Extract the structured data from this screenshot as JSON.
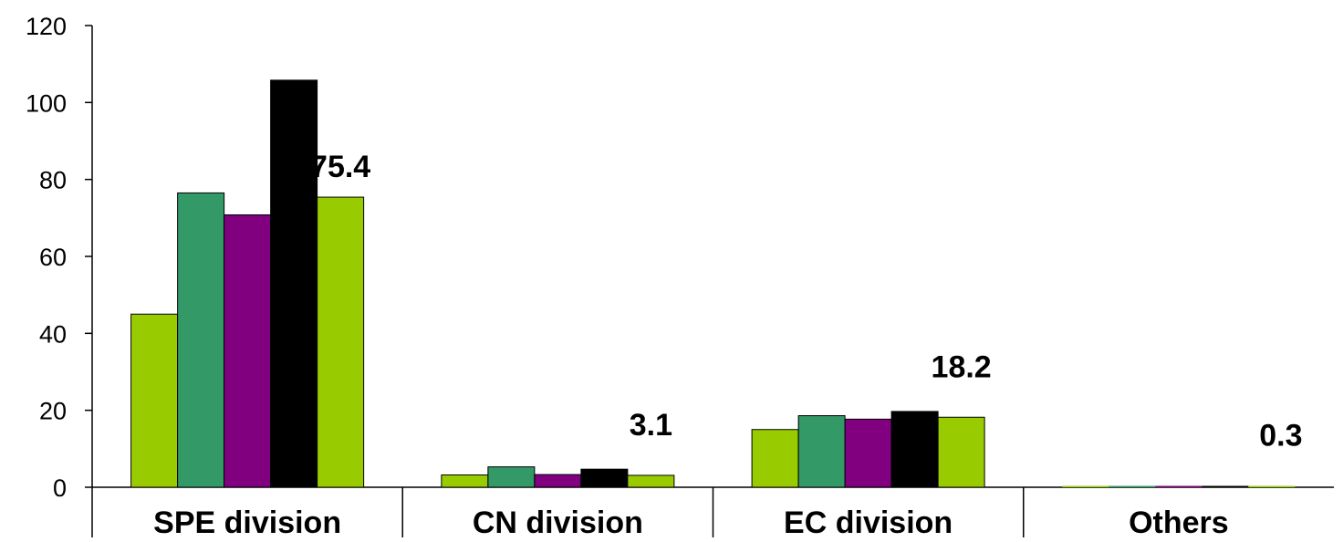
{
  "chart_data": {
    "type": "bar",
    "categories": [
      "SPE division",
      "CN division",
      "EC division",
      "Others"
    ],
    "series": [
      {
        "values": [
          45.0,
          3.2,
          15.0,
          0.3
        ],
        "color": "#99cc00"
      },
      {
        "values": [
          76.5,
          5.3,
          18.6,
          0.3
        ],
        "color": "#339966"
      },
      {
        "values": [
          70.8,
          3.3,
          17.7,
          0.3
        ],
        "color": "#800080"
      },
      {
        "values": [
          105.8,
          4.7,
          19.7,
          0.3
        ],
        "color": "#000000"
      },
      {
        "values": [
          75.4,
          3.1,
          18.2,
          0.3
        ],
        "color": "#99cc00"
      }
    ],
    "data_labels": [
      "75.4",
      "3.1",
      "18.2",
      "0.3"
    ],
    "yticks": [
      "0",
      "20",
      "40",
      "60",
      "80",
      "100",
      "120"
    ],
    "ylim": [
      0,
      120
    ],
    "title": "",
    "xlabel": "",
    "ylabel": "",
    "grid": false,
    "legend": "none"
  }
}
